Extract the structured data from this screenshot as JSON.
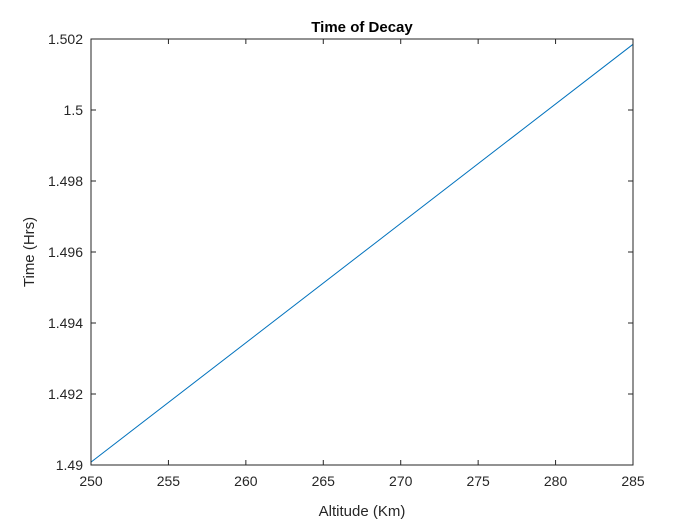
{
  "chart_data": {
    "type": "line",
    "title": "Time of Decay",
    "xlabel": "Altitude (Km)",
    "ylabel": "Time (Hrs)",
    "xlim": [
      250,
      285
    ],
    "ylim": [
      1.49,
      1.502
    ],
    "x_ticks": [
      250,
      255,
      260,
      265,
      270,
      275,
      280,
      285
    ],
    "x_tick_labels": [
      "250",
      "255",
      "260",
      "265",
      "270",
      "275",
      "280",
      "285"
    ],
    "y_ticks": [
      1.49,
      1.492,
      1.494,
      1.496,
      1.498,
      1.5,
      1.502
    ],
    "y_tick_labels": [
      "1.49",
      "1.492",
      "1.494",
      "1.496",
      "1.498",
      "1.5",
      "1.502"
    ],
    "grid": false,
    "series": [
      {
        "color": "#0072BD",
        "x": [
          250,
          285
        ],
        "y": [
          1.49008,
          1.50185
        ]
      }
    ]
  }
}
